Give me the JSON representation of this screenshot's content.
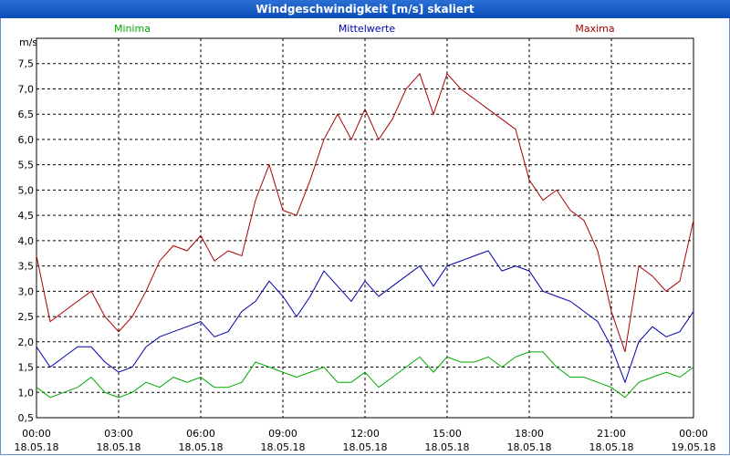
{
  "window": {
    "title": "Windgeschwindigkeit [m/s] skaliert"
  },
  "colors": {
    "minima": "#00aa00",
    "mittelwerte": "#0000aa",
    "maxima": "#aa0000",
    "grid": "#000000",
    "titlebar": "#1a5fc8"
  },
  "chart_data": {
    "type": "line",
    "title": "Windgeschwindigkeit [m/s] skaliert",
    "ylabel": "m/s",
    "xlabel": "",
    "ylim": [
      0.5,
      8.0
    ],
    "xlim": [
      0,
      24
    ],
    "grid": true,
    "y_ticks": [
      "0,5",
      "1,0",
      "1,5",
      "2,0",
      "2,5",
      "3,0",
      "3,5",
      "4,0",
      "4,5",
      "5,0",
      "5,5",
      "6,0",
      "6,5",
      "7,0",
      "7,5"
    ],
    "y_tick_values": [
      0.5,
      1.0,
      1.5,
      2.0,
      2.5,
      3.0,
      3.5,
      4.0,
      4.5,
      5.0,
      5.5,
      6.0,
      6.5,
      7.0,
      7.5
    ],
    "x_tick_values": [
      0,
      3,
      6,
      9,
      12,
      15,
      18,
      21,
      24
    ],
    "x_ticks": [
      {
        "time": "00:00",
        "date": "18.05.18"
      },
      {
        "time": "03:00",
        "date": "18.05.18"
      },
      {
        "time": "06:00",
        "date": "18.05.18"
      },
      {
        "time": "09:00",
        "date": "18.05.18"
      },
      {
        "time": "12:00",
        "date": "18.05.18"
      },
      {
        "time": "15:00",
        "date": "18.05.18"
      },
      {
        "time": "18:00",
        "date": "18.05.18"
      },
      {
        "time": "21:00",
        "date": "18.05.18"
      },
      {
        "time": "00:00",
        "date": "19.05.18"
      }
    ],
    "legend": [
      "Minima",
      "Mittelwerte",
      "Maxima"
    ],
    "x": [
      0,
      0.5,
      1,
      1.5,
      2,
      2.5,
      3,
      3.5,
      4,
      4.5,
      5,
      5.5,
      6,
      6.5,
      7,
      7.5,
      8,
      8.5,
      9,
      9.5,
      10,
      10.5,
      11,
      11.5,
      12,
      12.5,
      13,
      13.5,
      14,
      14.5,
      15,
      15.5,
      16,
      16.5,
      17,
      17.5,
      18,
      18.5,
      19,
      19.5,
      20,
      20.5,
      21,
      21.5,
      22,
      22.5,
      23,
      23.5,
      24
    ],
    "series": [
      {
        "name": "Minima",
        "color": "#00aa00",
        "values": [
          1.1,
          0.9,
          1.0,
          1.1,
          1.3,
          1.0,
          0.9,
          1.0,
          1.2,
          1.1,
          1.3,
          1.2,
          1.3,
          1.1,
          1.1,
          1.2,
          1.6,
          1.5,
          1.4,
          1.3,
          1.4,
          1.5,
          1.2,
          1.2,
          1.4,
          1.1,
          1.3,
          1.5,
          1.7,
          1.4,
          1.7,
          1.6,
          1.6,
          1.7,
          1.5,
          1.7,
          1.8,
          1.8,
          1.5,
          1.3,
          1.3,
          1.2,
          1.1,
          0.9,
          1.2,
          1.3,
          1.4,
          1.3,
          1.5
        ]
      },
      {
        "name": "Mittelwerte",
        "color": "#0000aa",
        "values": [
          1.9,
          1.5,
          1.7,
          1.9,
          1.9,
          1.6,
          1.4,
          1.5,
          1.9,
          2.1,
          2.2,
          2.3,
          2.4,
          2.1,
          2.2,
          2.6,
          2.8,
          3.2,
          2.9,
          2.5,
          2.9,
          3.4,
          3.1,
          2.8,
          3.2,
          2.9,
          3.1,
          3.3,
          3.5,
          3.1,
          3.5,
          3.6,
          3.7,
          3.8,
          3.4,
          3.5,
          3.4,
          3.0,
          2.9,
          2.8,
          2.6,
          2.4,
          1.9,
          1.2,
          2.0,
          2.3,
          2.1,
          2.2,
          2.6
        ]
      },
      {
        "name": "Maxima",
        "color": "#aa0000",
        "values": [
          3.7,
          2.4,
          2.6,
          2.8,
          3.0,
          2.5,
          2.2,
          2.5,
          3.0,
          3.6,
          3.9,
          3.8,
          4.1,
          3.6,
          3.8,
          3.7,
          4.8,
          5.5,
          4.6,
          4.5,
          5.2,
          6.0,
          6.5,
          6.0,
          6.6,
          6.0,
          6.4,
          7.0,
          7.3,
          6.5,
          7.3,
          7.0,
          6.8,
          6.6,
          6.4,
          6.2,
          5.2,
          4.8,
          5.0,
          4.6,
          4.4,
          3.8,
          2.6,
          1.8,
          3.5,
          3.3,
          3.0,
          3.2,
          4.4
        ]
      }
    ]
  }
}
